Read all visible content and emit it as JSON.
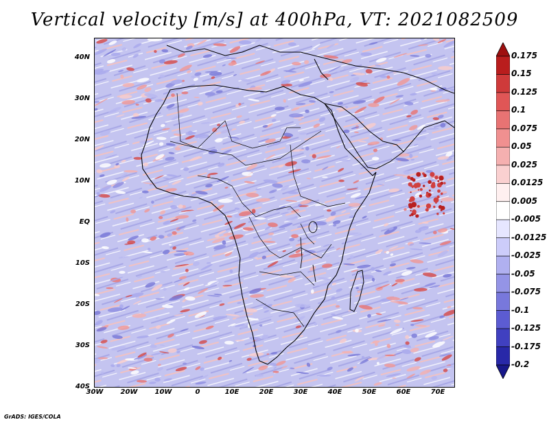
{
  "title": "Vertical velocity [m/s] at 400hPa, VT: 2021082509",
  "credit": "GrADS: IGES/COLA",
  "lat_labels": [
    "40N",
    "30N",
    "20N",
    "10N",
    "EQ",
    "10S",
    "20S",
    "30S",
    "40S"
  ],
  "lon_labels": [
    "30W",
    "20W",
    "10W",
    "0",
    "10E",
    "20E",
    "30E",
    "40E",
    "50E",
    "60E",
    "70E"
  ],
  "colorbar": {
    "labels": [
      "0.175",
      "0.15",
      "0.125",
      "0.1",
      "0.075",
      "0.05",
      "0.025",
      "0.0125",
      "0.005",
      "-0.005",
      "-0.0125",
      "-0.025",
      "-0.05",
      "-0.075",
      "-0.1",
      "-0.125",
      "-0.175",
      "-0.2"
    ],
    "colors": [
      "#9e0f0f",
      "#b91d1d",
      "#cf3a3a",
      "#e05656",
      "#e87373",
      "#f09090",
      "#f5b0b0",
      "#fad0d0",
      "#fff0f0",
      "#ffffff",
      "#e6e6ff",
      "#ccccfa",
      "#b0b0f0",
      "#9494e6",
      "#7878dc",
      "#5c5cd2",
      "#4040c0",
      "#2828a8",
      "#18188a"
    ]
  },
  "map": {
    "background_color": "#c9c9f2",
    "land_line_color": "#000000"
  }
}
